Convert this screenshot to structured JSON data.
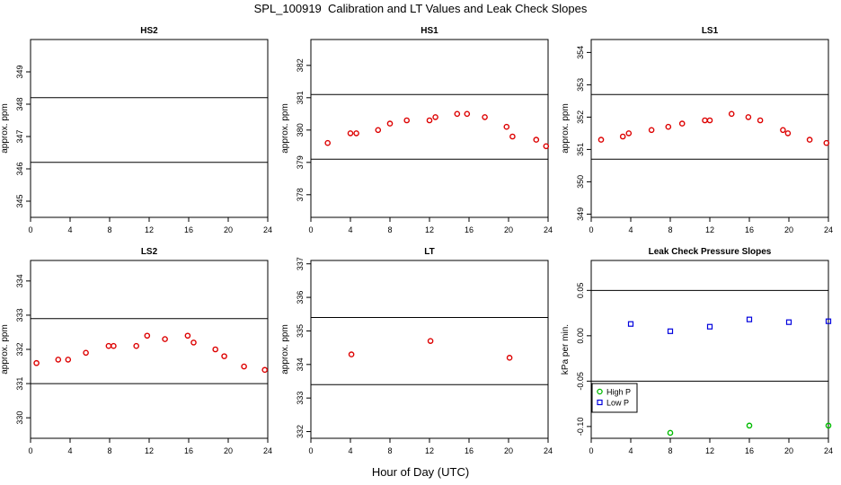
{
  "title": "SPL_100919  Calibration and LT Values and Leak Check Slopes",
  "x_axis_title": "Hour of Day (UTC)",
  "colors": {
    "high": "#00bb00",
    "low": "#0000dd",
    "points": "#dd0000"
  },
  "chart_data": [
    {
      "type": "scatter",
      "title": "HS2",
      "xlabel": "",
      "ylabel": "approx. ppm",
      "xlim": [
        0,
        24
      ],
      "ylim": [
        344.5,
        350
      ],
      "xticks": [
        0,
        4,
        8,
        12,
        16,
        20,
        24
      ],
      "yticks": [
        345,
        346,
        347,
        348,
        349
      ],
      "hlines": [
        348.2,
        346.2
      ],
      "series": [
        {
          "color": "#dd0000",
          "x": [],
          "y": []
        }
      ]
    },
    {
      "type": "scatter",
      "title": "HS1",
      "xlabel": "",
      "ylabel": "approx. ppm",
      "xlim": [
        0,
        24
      ],
      "ylim": [
        377.3,
        382.8
      ],
      "xticks": [
        0,
        4,
        8,
        12,
        16,
        20,
        24
      ],
      "yticks": [
        378,
        379,
        380,
        381,
        382
      ],
      "hlines": [
        381.1,
        379.1
      ],
      "series": [
        {
          "color": "#dd0000",
          "x": [
            1.7,
            4,
            4.6,
            6.8,
            8,
            9.7,
            12,
            12.6,
            14.8,
            15.8,
            17.6,
            19.8,
            20.4,
            22.8,
            23.8
          ],
          "y": [
            379.6,
            379.9,
            379.9,
            380.0,
            380.2,
            380.3,
            380.3,
            380.4,
            380.5,
            380.5,
            380.4,
            380.1,
            379.8,
            379.7,
            379.5
          ]
        }
      ]
    },
    {
      "type": "scatter",
      "title": "LS1",
      "xlabel": "",
      "ylabel": "approx. ppm",
      "xlim": [
        0,
        24
      ],
      "ylim": [
        348.9,
        354.4
      ],
      "xticks": [
        0,
        4,
        8,
        12,
        16,
        20,
        24
      ],
      "yticks": [
        349,
        350,
        351,
        352,
        353,
        354
      ],
      "hlines": [
        352.7,
        350.7
      ],
      "series": [
        {
          "color": "#dd0000",
          "x": [
            1,
            3.2,
            3.8,
            6.1,
            7.8,
            9.2,
            11.5,
            12,
            14.2,
            15.9,
            17.1,
            19.4,
            19.9,
            22.1,
            23.8
          ],
          "y": [
            351.3,
            351.4,
            351.5,
            351.6,
            351.7,
            351.8,
            351.9,
            351.9,
            352.1,
            352.0,
            351.9,
            351.6,
            351.5,
            351.3,
            351.2
          ]
        }
      ]
    },
    {
      "type": "scatter",
      "title": "LS2",
      "xlabel": "",
      "ylabel": "approx. ppm",
      "xlim": [
        0,
        24
      ],
      "ylim": [
        329.4,
        334.6
      ],
      "xticks": [
        0,
        4,
        8,
        12,
        16,
        20,
        24
      ],
      "yticks": [
        330,
        331,
        332,
        333,
        334
      ],
      "hlines": [
        332.9,
        331.0
      ],
      "series": [
        {
          "color": "#dd0000",
          "x": [
            0.6,
            2.8,
            3.8,
            5.6,
            7.9,
            8.4,
            10.7,
            11.8,
            13.6,
            15.9,
            16.5,
            18.7,
            19.6,
            21.6,
            23.7
          ],
          "y": [
            331.6,
            331.7,
            331.7,
            331.9,
            332.1,
            332.1,
            332.1,
            332.4,
            332.3,
            332.4,
            332.2,
            332.0,
            331.8,
            331.5,
            331.4
          ]
        }
      ]
    },
    {
      "type": "scatter",
      "title": "LT",
      "xlabel": "",
      "ylabel": "approx. ppm",
      "xlim": [
        0,
        24
      ],
      "ylim": [
        331.8,
        337.1
      ],
      "xticks": [
        0,
        4,
        8,
        12,
        16,
        20,
        24
      ],
      "yticks": [
        332,
        333,
        334,
        335,
        336,
        337
      ],
      "hlines": [
        335.4,
        333.4
      ],
      "series": [
        {
          "color": "#dd0000",
          "x": [
            4.1,
            12.1,
            20.1
          ],
          "y": [
            334.3,
            334.7,
            334.2
          ]
        }
      ]
    },
    {
      "type": "scatter",
      "title": "Leak Check Pressure Slopes",
      "xlabel": "",
      "ylabel": "kPa per min.",
      "xlim": [
        0,
        24
      ],
      "ylim": [
        -0.113,
        0.083
      ],
      "xticks": [
        0,
        4,
        8,
        12,
        16,
        20,
        24
      ],
      "yticks": [
        -0.1,
        -0.05,
        0,
        0.05
      ],
      "ytick_labels": [
        "-0.10",
        "-0.05",
        "0.00",
        "0.05"
      ],
      "hlines": [
        0.05,
        -0.05
      ],
      "legend": {
        "position": "bottom-left",
        "entries": [
          "High P",
          "Low P"
        ]
      },
      "series": [
        {
          "name": "High P",
          "color": "#00bb00",
          "marker": "circle",
          "x": [
            8,
            16,
            24
          ],
          "y": [
            -0.107,
            -0.099,
            -0.099
          ]
        },
        {
          "name": "Low P",
          "color": "#0000dd",
          "marker": "square",
          "x": [
            4,
            8,
            12,
            16,
            20,
            24
          ],
          "y": [
            0.013,
            0.005,
            0.01,
            0.018,
            0.015,
            0.016
          ]
        }
      ]
    }
  ]
}
